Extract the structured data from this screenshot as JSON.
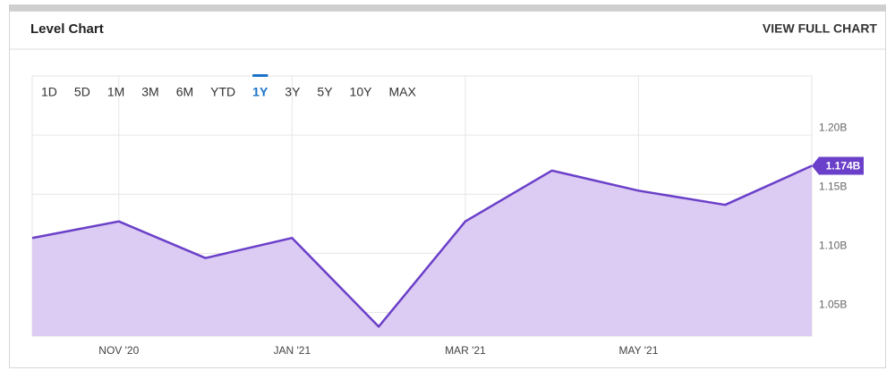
{
  "header": {
    "title": "Level Chart",
    "link": "VIEW FULL CHART"
  },
  "chart_data": {
    "type": "area",
    "range_options": [
      "1D",
      "5D",
      "1M",
      "3M",
      "6M",
      "YTD",
      "1Y",
      "3Y",
      "5Y",
      "10Y",
      "MAX"
    ],
    "selected_range": 6,
    "categories": [
      null,
      "NOV '20",
      null,
      "JAN '21",
      null,
      "MAR '21",
      null,
      "MAY '21",
      null,
      null
    ],
    "values": [
      1.113,
      1.127,
      1.096,
      1.113,
      1.038,
      1.127,
      1.17,
      1.153,
      1.141,
      1.174
    ],
    "value_labels": [
      null,
      null,
      null,
      null,
      null,
      null,
      null,
      null,
      null,
      "1.174B"
    ],
    "color": "#6a3fc9",
    "fill": "#dccbf2",
    "ylim": [
      1.03,
      1.25
    ],
    "yticks": [
      {
        "value": 1.05,
        "label": "1.05B"
      },
      {
        "value": 1.1,
        "label": "1.10B"
      },
      {
        "value": 1.15,
        "label": "1.15B"
      },
      {
        "value": 1.2,
        "label": "1.20B"
      }
    ],
    "grid": true
  }
}
